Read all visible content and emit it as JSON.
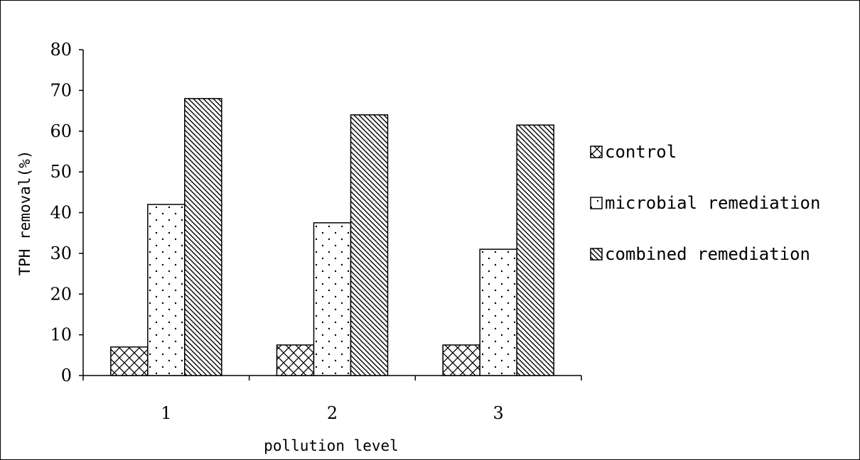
{
  "chart_data": {
    "type": "bar",
    "title": "",
    "xlabel": "pollution level",
    "ylabel": "TPH removal(%)",
    "categories": [
      "1",
      "2",
      "3"
    ],
    "ylim": [
      0,
      80
    ],
    "yticks": [
      0,
      10,
      20,
      30,
      40,
      50,
      60,
      70,
      80
    ],
    "grid": false,
    "legend_position": "right",
    "series": [
      {
        "name": "control",
        "values": [
          7,
          7.5,
          7.5
        ],
        "pattern": "crosshatch"
      },
      {
        "name": "microbial remediation",
        "values": [
          42,
          37.5,
          31
        ],
        "pattern": "dots"
      },
      {
        "name": "combined remediation",
        "values": [
          68,
          64,
          61.5
        ],
        "pattern": "diagonal"
      }
    ]
  }
}
